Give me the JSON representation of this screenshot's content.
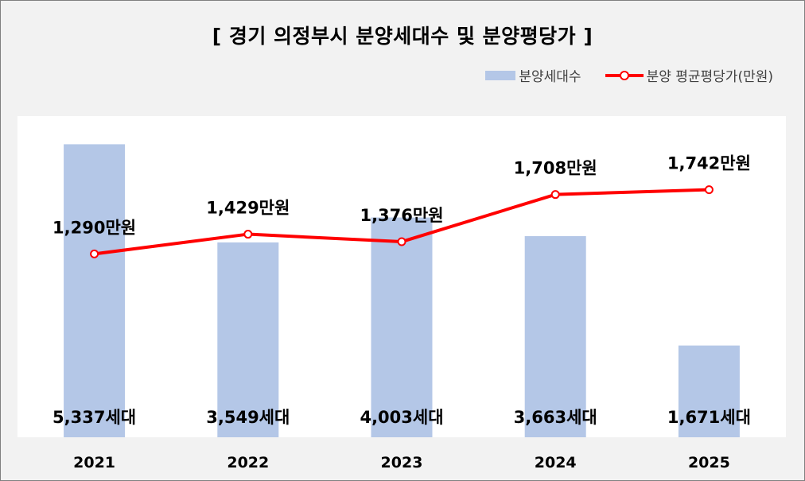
{
  "chart_data": {
    "type": "bar",
    "title": "[ 경기 의정부시 분양세대수 및 분양평당가 ]",
    "categories": [
      "2021",
      "2022",
      "2023",
      "2024",
      "2025"
    ],
    "series": [
      {
        "name": "분양세대수",
        "type": "bar",
        "values": [
          5337,
          3549,
          4003,
          3663,
          1671
        ],
        "labels": [
          "5,337세대",
          "3,549세대",
          "4,003세대",
          "3,663세대",
          "1,671세대"
        ],
        "color": "#b4c7e7"
      },
      {
        "name": "분양 평균평당가(만원)",
        "type": "line",
        "values": [
          1290,
          1429,
          1376,
          1708,
          1742
        ],
        "labels": [
          "1,290만원",
          "1,429만원",
          "1,376만원",
          "1,708만원",
          "1,742만원"
        ],
        "color": "#ff0000"
      }
    ],
    "bar_ylim": [
      0,
      5850
    ],
    "line_ylim": [
      0,
      2260
    ],
    "grid": false,
    "legend_position": "top-right"
  }
}
